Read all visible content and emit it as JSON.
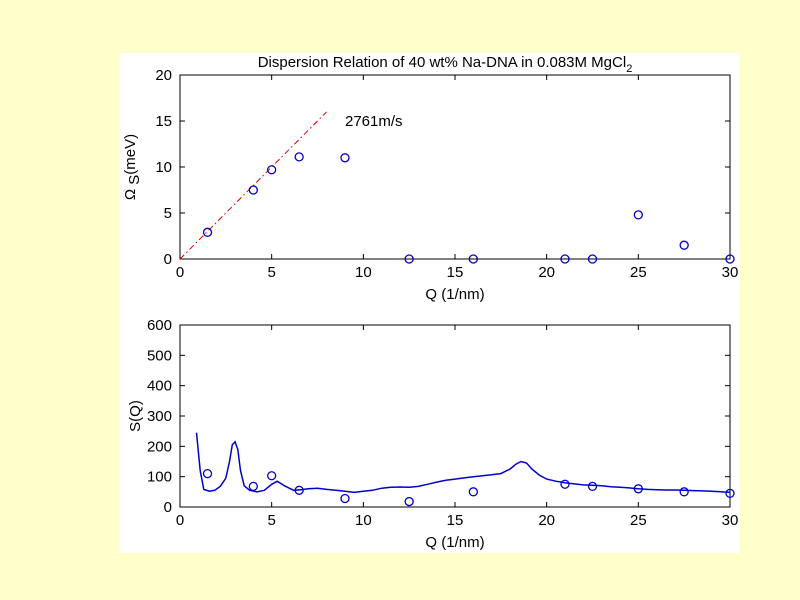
{
  "colors": {
    "page_background": "#ffffcc",
    "figure_background": "#ffffff",
    "data_color": "#0000cc",
    "fit_color": "#dd0000"
  },
  "chart_data": [
    {
      "type": "scatter",
      "title": "Dispersion Relation of 40 wt% Na-DNA in 0.083M MgCl",
      "title_subscript": "2",
      "xlabel": "Q (1/nm)",
      "ylabel_main": "Ω",
      "ylabel_sub": "S",
      "ylabel_rest": "(meV)",
      "xlim": [
        0,
        30
      ],
      "ylim": [
        0,
        20
      ],
      "xticks": [
        "0",
        "5",
        "10",
        "15",
        "20",
        "25",
        "30"
      ],
      "yticks": [
        "0",
        "5",
        "10",
        "15",
        "20"
      ],
      "grid": false,
      "series": [
        {
          "marker": "circle",
          "x": [
            1.5,
            4.0,
            5.0,
            6.5,
            9.0,
            12.5,
            16.0,
            21.0,
            22.5,
            25.0,
            27.5,
            30.0
          ],
          "y": [
            2.9,
            7.5,
            9.7,
            11.1,
            11.0,
            0.0,
            0.0,
            0.0,
            0.0,
            4.8,
            1.5,
            0.0
          ]
        }
      ],
      "fit_line": {
        "style": "dash-dot",
        "x": [
          0,
          8
        ],
        "y": [
          0,
          16
        ],
        "label": "2761m/s",
        "label_at": [
          9,
          15
        ]
      }
    },
    {
      "type": "line",
      "xlabel": "Q (1/nm)",
      "ylabel": "S(Q)",
      "xlim": [
        0,
        30
      ],
      "ylim": [
        0,
        600
      ],
      "xticks": [
        "0",
        "5",
        "10",
        "15",
        "20",
        "25",
        "30"
      ],
      "yticks": [
        "0",
        "100",
        "200",
        "300",
        "400",
        "500",
        "600"
      ],
      "grid": false,
      "series": [
        {
          "marker": "none",
          "x": [
            0.9,
            1.1,
            1.3,
            1.6,
            1.9,
            2.2,
            2.5,
            2.7,
            2.85,
            3.0,
            3.15,
            3.3,
            3.5,
            3.8,
            4.2,
            4.6,
            5.0,
            5.3,
            5.7,
            6.2,
            6.6,
            7.0,
            7.5,
            8.0,
            8.5,
            9.0,
            9.5,
            10.0,
            10.5,
            11.0,
            11.5,
            12.0,
            12.5,
            13.0,
            13.5,
            14.0,
            14.5,
            15.0,
            15.5,
            16.0,
            16.5,
            17.0,
            17.5,
            18.0,
            18.3,
            18.6,
            18.9,
            19.2,
            19.6,
            20.0,
            20.5,
            21.0,
            21.5,
            22.0,
            22.5,
            23.0,
            23.5,
            24.0,
            24.5,
            25.0,
            25.5,
            26.0,
            26.5,
            27.0,
            27.5,
            28.0,
            28.5,
            29.0,
            29.5,
            30.0
          ],
          "y": [
            245,
            120,
            58,
            52,
            55,
            68,
            95,
            150,
            205,
            215,
            190,
            120,
            70,
            55,
            50,
            55,
            75,
            85,
            70,
            55,
            57,
            60,
            62,
            58,
            55,
            52,
            48,
            52,
            55,
            62,
            65,
            66,
            65,
            68,
            75,
            82,
            88,
            92,
            96,
            100,
            103,
            106,
            110,
            125,
            140,
            150,
            145,
            125,
            105,
            92,
            85,
            80,
            76,
            73,
            72,
            70,
            67,
            65,
            63,
            60,
            58,
            57,
            56,
            56,
            55,
            54,
            53,
            52,
            50,
            48
          ]
        },
        {
          "marker": "circle",
          "x": [
            1.5,
            4.0,
            5.0,
            6.5,
            9.0,
            12.5,
            16.0,
            21.0,
            22.5,
            25.0,
            27.5,
            30.0
          ],
          "y": [
            110,
            68,
            103,
            55,
            28,
            18,
            50,
            75,
            68,
            60,
            50,
            45
          ]
        }
      ]
    }
  ]
}
